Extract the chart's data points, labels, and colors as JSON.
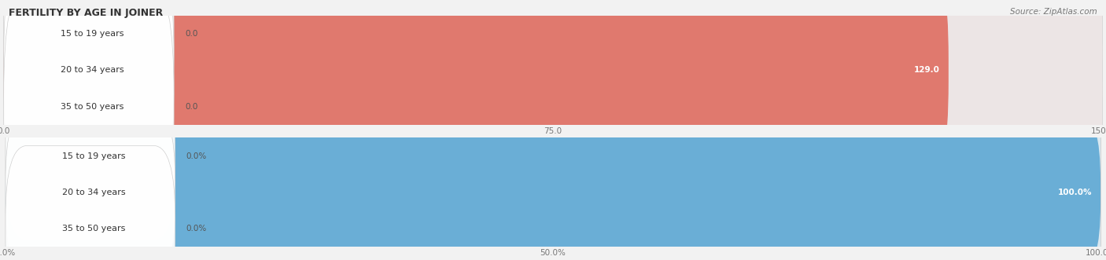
{
  "title": "FERTILITY BY AGE IN JOINER",
  "source": "Source: ZipAtlas.com",
  "top_chart": {
    "categories": [
      "15 to 19 years",
      "20 to 34 years",
      "35 to 50 years"
    ],
    "values": [
      0.0,
      129.0,
      0.0
    ],
    "max_value": 150.0,
    "tick_values": [
      0.0,
      75.0,
      150.0
    ],
    "tick_labels": [
      "0.0",
      "75.0",
      "150.0"
    ],
    "bar_color": "#e0796e",
    "bg_color": "#ece5e5",
    "value_labels": [
      "0.0",
      "129.0",
      "0.0"
    ]
  },
  "bottom_chart": {
    "categories": [
      "15 to 19 years",
      "20 to 34 years",
      "35 to 50 years"
    ],
    "values": [
      0.0,
      100.0,
      0.0
    ],
    "max_value": 100.0,
    "tick_values": [
      0.0,
      50.0,
      100.0
    ],
    "tick_labels": [
      "0.0%",
      "50.0%",
      "100.0%"
    ],
    "bar_color": "#6aaed6",
    "bg_color": "#dae8f0",
    "value_labels": [
      "0.0%",
      "100.0%",
      "0.0%"
    ]
  },
  "fig_bg_color": "#f2f2f2",
  "title_fontsize": 9,
  "label_fontsize": 8,
  "value_fontsize": 7.5,
  "tick_fontsize": 7.5,
  "bar_height": 0.65,
  "label_bg_color": "#f8f8f8",
  "label_border_color": "#dddddd"
}
